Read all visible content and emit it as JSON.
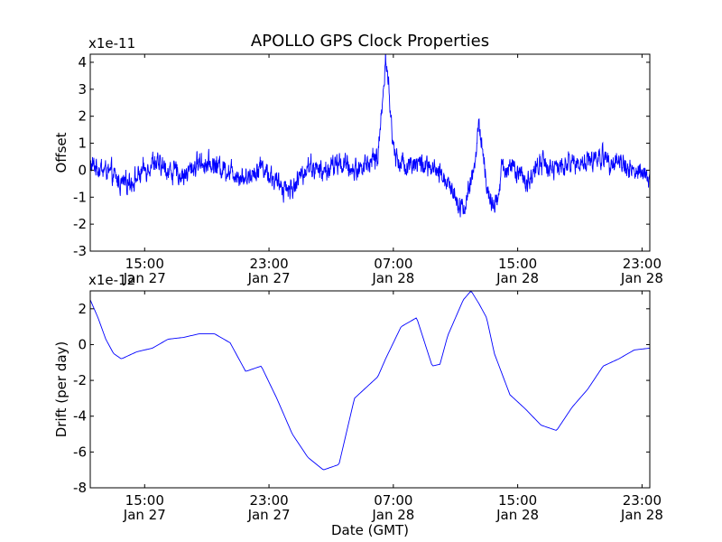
{
  "figure": {
    "title": "APOLLO GPS Clock Properties",
    "xlabel": "Date (GMT)"
  },
  "colors": {
    "line": "#0000ff",
    "axes": "#000000",
    "background": "#ffffff"
  },
  "chart_data": [
    {
      "type": "line",
      "ylabel": "Offset",
      "multiplier_label": "x1e-11",
      "xlim": [
        "Jan 27 11:30",
        "Jan 28 23:30"
      ],
      "ylim": [
        -3,
        4.3
      ],
      "yticks": [
        -3,
        -2,
        -1,
        0,
        1,
        2,
        3,
        4
      ],
      "grid": false,
      "xtick_labels": [
        {
          "time": "15:00",
          "date": "Jan 27"
        },
        {
          "time": "23:00",
          "date": "Jan 27"
        },
        {
          "time": "07:00",
          "date": "Jan 28"
        },
        {
          "time": "15:00",
          "date": "Jan 28"
        },
        {
          "time": "23:00",
          "date": "Jan 28"
        }
      ],
      "series": [
        {
          "noisy": true,
          "x_hours": [
            0,
            1,
            2,
            3,
            4,
            5,
            6,
            7,
            8,
            9,
            10,
            11,
            12,
            13,
            14,
            15,
            16,
            17,
            18,
            18.5,
            18.8,
            19,
            19.2,
            19.5,
            20,
            21,
            22,
            23,
            24,
            24.7,
            25,
            25.5,
            26,
            26.5,
            27,
            28,
            29,
            30,
            31,
            32,
            33,
            34,
            35,
            36
          ],
          "y": [
            0.2,
            0.0,
            -0.5,
            -0.3,
            0.3,
            0.0,
            -0.2,
            0.3,
            0.2,
            0.0,
            -0.3,
            0.2,
            -0.5,
            -0.7,
            0.2,
            -0.1,
            0.3,
            0.0,
            0.3,
            0.5,
            2.5,
            4.3,
            3.0,
            0.8,
            0.2,
            0.3,
            0.0,
            -0.4,
            -1.5,
            0.0,
            1.8,
            -0.6,
            -1.6,
            0.0,
            0.2,
            -0.5,
            0.3,
            0.0,
            0.3,
            0.3,
            0.5,
            0.3,
            0.0,
            -0.3
          ]
        }
      ]
    },
    {
      "type": "line",
      "ylabel": "Drift (per day)",
      "multiplier_label": "x1e-12",
      "xlim": [
        "Jan 27 11:30",
        "Jan 28 23:30"
      ],
      "ylim": [
        -8,
        3
      ],
      "yticks": [
        -8,
        -6,
        -4,
        -2,
        0,
        2
      ],
      "grid": false,
      "xtick_labels": [
        {
          "time": "15:00",
          "date": "Jan 27"
        },
        {
          "time": "23:00",
          "date": "Jan 27"
        },
        {
          "time": "07:00",
          "date": "Jan 28"
        },
        {
          "time": "15:00",
          "date": "Jan 28"
        },
        {
          "time": "23:00",
          "date": "Jan 28"
        }
      ],
      "series": [
        {
          "noisy": false,
          "x_hours": [
            0,
            0.5,
            1,
            1.5,
            2,
            3,
            4,
            5,
            6,
            7,
            8,
            9,
            10,
            11,
            12,
            13,
            14,
            15,
            16,
            17,
            18,
            18.5,
            19,
            20,
            21,
            22,
            22.5,
            23,
            23.5,
            24,
            24.5,
            25,
            25.5,
            26,
            27,
            28,
            29,
            30,
            31,
            32,
            33,
            34,
            35,
            36
          ],
          "y": [
            2.5,
            1.5,
            0.3,
            -0.5,
            -0.8,
            -0.4,
            -0.2,
            0.3,
            0.4,
            0.6,
            0.6,
            0.1,
            -1.5,
            -1.2,
            -3.0,
            -5.0,
            -6.3,
            -7.0,
            -6.7,
            -3.0,
            -2.2,
            -1.8,
            -0.8,
            1.0,
            1.5,
            -1.2,
            -1.1,
            0.5,
            1.5,
            2.5,
            3.0,
            2.3,
            1.5,
            -0.5,
            -2.8,
            -3.6,
            -4.5,
            -4.8,
            -3.5,
            -2.5,
            -1.2,
            -0.8,
            -0.3,
            -0.2
          ]
        }
      ]
    }
  ]
}
